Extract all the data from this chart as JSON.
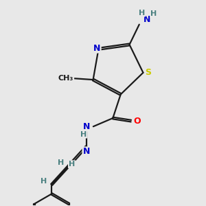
{
  "background_color": "#e8e8e8",
  "atom_colors": {
    "N": "#0000cc",
    "S": "#cccc00",
    "O": "#ff0000",
    "C": "#1a1a1a",
    "H": "#4a8080"
  },
  "bond_color": "#1a1a1a",
  "bond_lw": 1.6,
  "figsize": [
    3.0,
    3.0
  ],
  "dpi": 100
}
